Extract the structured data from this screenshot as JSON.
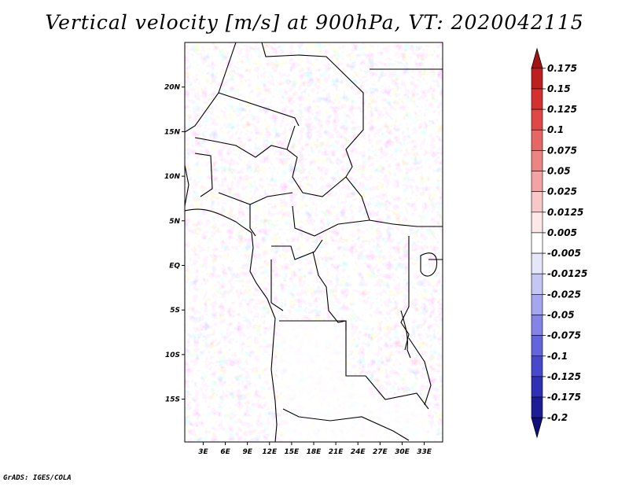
{
  "title": "Vertical velocity [m/s] at 900hPa, VT: 2020042115",
  "footer": "GrADS: IGES/COLA",
  "map": {
    "lat_labels": [
      "20N",
      "15N",
      "10N",
      "5N",
      "EQ",
      "5S",
      "10S",
      "15S"
    ],
    "lat_values": [
      20,
      15,
      10,
      5,
      0,
      -5,
      -10,
      -15
    ],
    "lon_labels": [
      "3E",
      "6E",
      "9E",
      "12E",
      "15E",
      "18E",
      "21E",
      "24E",
      "27E",
      "30E",
      "33E"
    ],
    "lon_values": [
      3,
      6,
      9,
      12,
      15,
      18,
      21,
      24,
      27,
      30,
      33
    ],
    "lon_range": [
      0.5,
      35.5
    ],
    "lat_range": [
      -19.8,
      25.0
    ]
  },
  "colorbar": {
    "labels": [
      "0.175",
      "0.15",
      "0.125",
      "0.1",
      "0.075",
      "0.05",
      "0.025",
      "0.0125",
      "0.005",
      "-0.005",
      "-0.0125",
      "-0.025",
      "-0.05",
      "-0.075",
      "-0.1",
      "-0.125",
      "-0.175",
      "-0.2"
    ],
    "colors": [
      "#a01414",
      "#be2020",
      "#d43030",
      "#e04848",
      "#e66666",
      "#ec8484",
      "#f2a4a4",
      "#f8c8c8",
      "#fce8e8",
      "#ffffff",
      "#e6e6fa",
      "#c6c6f4",
      "#a6a6ee",
      "#8484e6",
      "#6464dc",
      "#4848cc",
      "#3030b4",
      "#1c1c96",
      "#10107a"
    ]
  }
}
